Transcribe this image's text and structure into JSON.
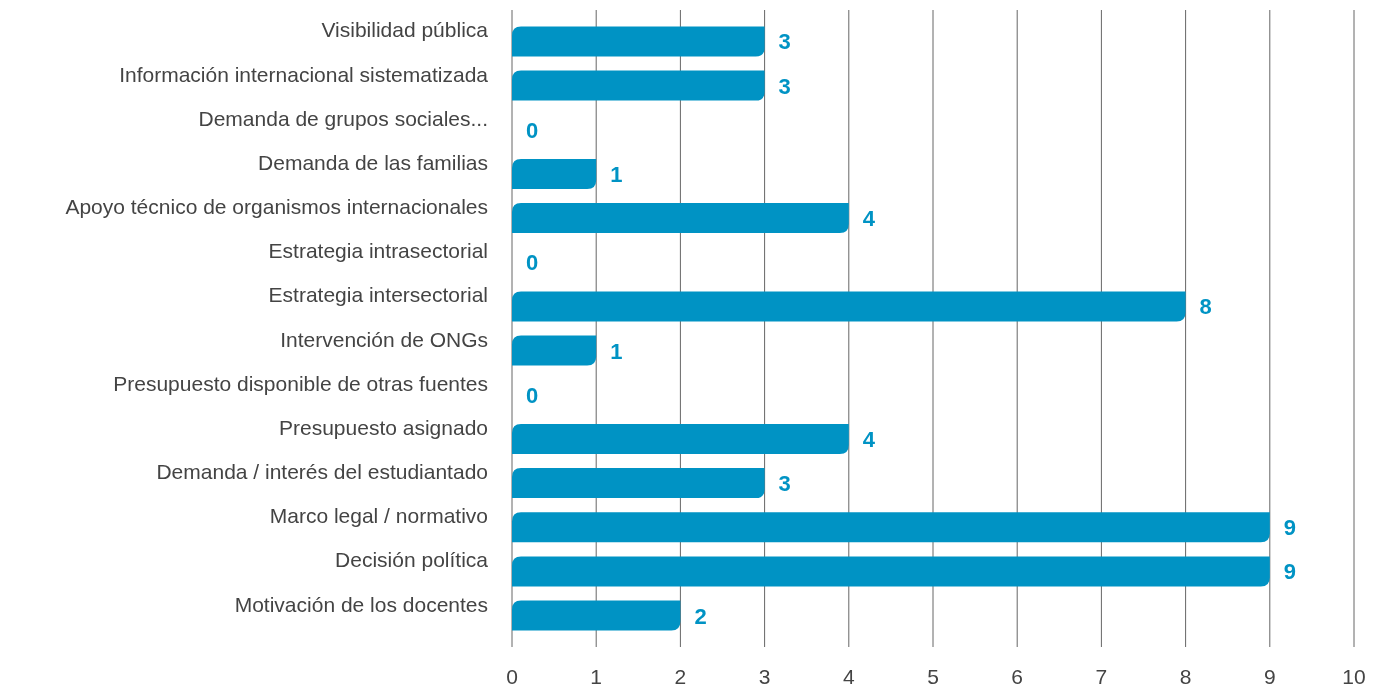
{
  "chart_data": {
    "type": "bar",
    "orientation": "horizontal",
    "categories": [
      "Visibilidad pública",
      "Información internacional sistematizada",
      "Demanda de grupos sociales...",
      "Demanda de las familias",
      "Apoyo técnico de organismos internacionales",
      "Estrategia intrasectorial",
      "Estrategia intersectorial",
      "Intervención de ONGs",
      "Presupuesto disponible de otras fuentes",
      "Presupuesto asignado",
      "Demanda / interés del estudiantado",
      "Marco legal / normativo",
      "Decisión política",
      "Motivación de los docentes"
    ],
    "values": [
      3,
      3,
      0,
      1,
      4,
      0,
      8,
      1,
      0,
      4,
      3,
      9,
      9,
      2
    ],
    "color": "#0093c4",
    "xlim": [
      0,
      10
    ],
    "xticks": [
      0,
      1,
      2,
      3,
      4,
      5,
      6,
      7,
      8,
      9,
      10
    ],
    "grid": "x",
    "data_labels": true
  }
}
